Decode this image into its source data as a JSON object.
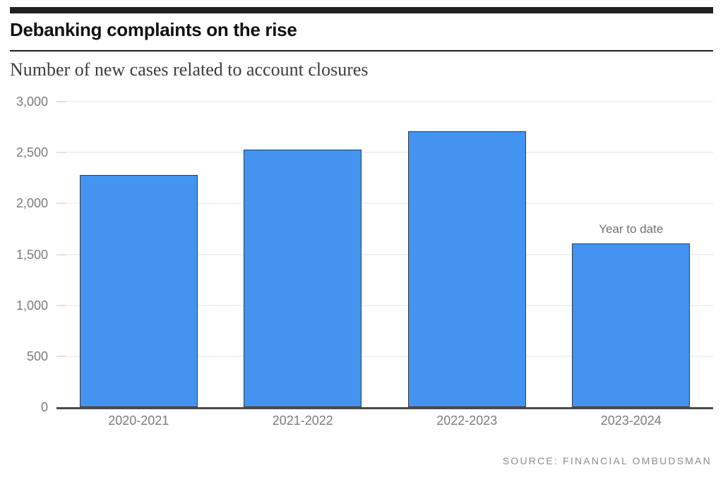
{
  "header": {
    "title": "Debanking complaints on the rise",
    "subtitle": "Number of new cases related to account closures"
  },
  "footer": {
    "source": "SOURCE: FINANCIAL OMBUDSMAN"
  },
  "colors": {
    "accent_bar": "#1f1f1f",
    "bar_fill": "#4294f0",
    "bar_border": "#3a3a3a",
    "gridline": "#e3e3e3",
    "baseline": "#4a4a4a",
    "axis_label": "#7b7b7b"
  },
  "chart_data": {
    "type": "bar",
    "title": "Debanking complaints on the rise",
    "subtitle": "Number of new cases related to account closures",
    "categories": [
      "2020-2021",
      "2021-2022",
      "2022-2023",
      "2023-2024"
    ],
    "values": [
      2280,
      2530,
      2710,
      1610
    ],
    "xlabel": "",
    "ylabel": "",
    "ylim": [
      0,
      3000
    ],
    "grid": "horizontal",
    "legend": "none",
    "yticks": [
      {
        "value": 0,
        "label": "0"
      },
      {
        "value": 500,
        "label": "500"
      },
      {
        "value": 1000,
        "label": "1,000"
      },
      {
        "value": 1500,
        "label": "1,500"
      },
      {
        "value": 2000,
        "label": "2,000"
      },
      {
        "value": 2500,
        "label": "2,500"
      },
      {
        "value": 3000,
        "label": "3,000"
      }
    ],
    "annotation": {
      "text": "Year to date",
      "category_index": 3
    },
    "source": "SOURCE: FINANCIAL OMBUDSMAN"
  }
}
